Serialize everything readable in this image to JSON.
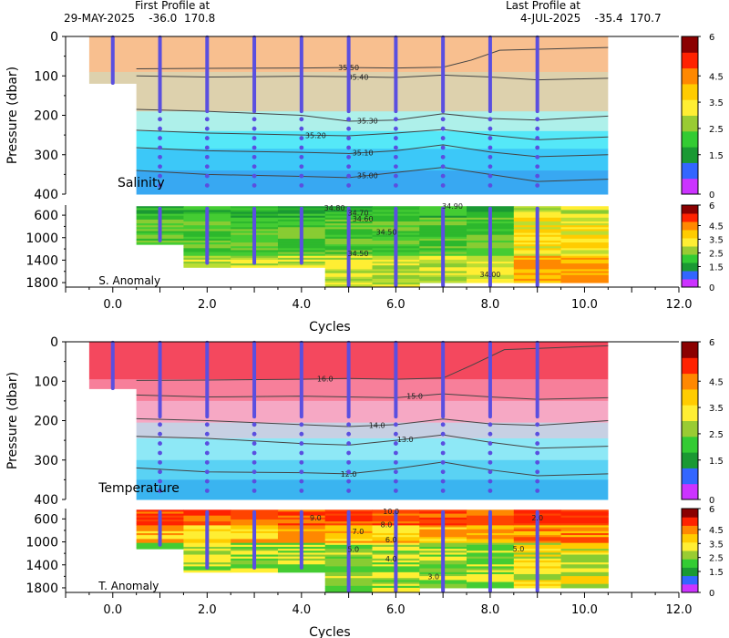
{
  "header": {
    "first_label": "First Profile at",
    "first_value": "29-MAY-2025    -36.0  170.8",
    "last_label": "Last Profile at",
    "last_value": "4-JUL-2025    -35.4  170.7"
  },
  "colorbar_ticks": [
    "0",
    "1.5",
    "2.5",
    "3.5",
    "4.5",
    "6"
  ],
  "colors": {
    "profile_line": "#5a4fe0",
    "colorbar": [
      "#cc33ff",
      "#3366ff",
      "#1a9933",
      "#33cc33",
      "#99cc33",
      "#ffee33",
      "#ffcc00",
      "#ff8800",
      "#ff2200",
      "#8b0000"
    ]
  },
  "chart_data": [
    {
      "type": "heatmap",
      "panel": "salinity",
      "label": "Salinity",
      "ylabel": "Pressure (dbar)",
      "y_ticks": [
        0,
        100,
        200,
        300,
        400
      ],
      "ylim": [
        0,
        400
      ],
      "x_ticks": [
        "0.0",
        "2.0",
        "4.0",
        "6.0",
        "8.0",
        "10.0",
        "12.0"
      ],
      "xlim": [
        -1,
        12
      ],
      "bands": [
        {
          "from": 0,
          "to": 90,
          "color": "#f8bf8f"
        },
        {
          "from": 90,
          "to": 190,
          "color": "#ddd1ad"
        },
        {
          "from": 190,
          "to": 240,
          "color": "#aef0ea"
        },
        {
          "from": 240,
          "to": 285,
          "color": "#55e8f8"
        },
        {
          "from": 285,
          "to": 340,
          "color": "#3cc8f8"
        },
        {
          "from": 340,
          "to": 400,
          "color": "#38a8f2"
        }
      ],
      "contours": [
        {
          "label": "35.50",
          "label_x": 5.0,
          "x": [
            0.5,
            2,
            4,
            5,
            6,
            7,
            7.6,
            8.2,
            10.5
          ],
          "y": [
            82,
            81,
            80,
            79,
            80,
            78,
            60,
            35,
            28
          ]
        },
        {
          "label": "35.40",
          "label_x": 5.2,
          "x": [
            0.5,
            2,
            4,
            5,
            6,
            7,
            8,
            9,
            10.5
          ],
          "y": [
            100,
            103,
            101,
            102,
            104,
            98,
            103,
            110,
            106
          ]
        },
        {
          "label": "35.30",
          "label_x": 5.4,
          "x": [
            0.5,
            2,
            4,
            5,
            6,
            7,
            8,
            9,
            10.5
          ],
          "y": [
            185,
            190,
            200,
            215,
            212,
            196,
            208,
            212,
            202
          ]
        },
        {
          "label": "35.20",
          "label_x": 4.3,
          "x": [
            0.5,
            2,
            4,
            5,
            6,
            7,
            8,
            9,
            10.5
          ],
          "y": [
            238,
            245,
            250,
            252,
            245,
            236,
            250,
            262,
            255
          ]
        },
        {
          "label": "35.10",
          "label_x": 5.3,
          "x": [
            0.5,
            2,
            4,
            5,
            6,
            7,
            8,
            9,
            10.5
          ],
          "y": [
            282,
            290,
            294,
            297,
            290,
            275,
            293,
            305,
            300
          ]
        },
        {
          "label": "35.00",
          "label_x": 5.4,
          "x": [
            0.5,
            2,
            4,
            5,
            6,
            7,
            8,
            9,
            10.5
          ],
          "y": [
            340,
            350,
            355,
            358,
            345,
            332,
            350,
            368,
            362
          ]
        }
      ]
    },
    {
      "type": "heatmap",
      "panel": "salinity_anomaly",
      "label": "S. Anomaly",
      "y_ticks": [
        600,
        1000,
        1400,
        1800
      ],
      "ylim": [
        420,
        1880
      ],
      "x_ticks": [
        "0.0",
        "2.0",
        "4.0",
        "6.0",
        "8.0",
        "10.0",
        "12.0"
      ],
      "xlim": [
        -1,
        12
      ],
      "contour_labels": [
        {
          "text": "34.80",
          "x": 4.7,
          "y": 470
        },
        {
          "text": "34.70",
          "x": 5.2,
          "y": 560
        },
        {
          "text": "34.60",
          "x": 5.3,
          "y": 660
        },
        {
          "text": "34.90",
          "x": 7.2,
          "y": 440
        },
        {
          "text": "34.50",
          "x": 5.8,
          "y": 900
        },
        {
          "text": "34.50",
          "x": 5.2,
          "y": 1280
        },
        {
          "text": "34.00",
          "x": 8.0,
          "y": 1650
        }
      ]
    },
    {
      "type": "heatmap",
      "panel": "temperature",
      "label": "Temperature",
      "ylabel": "Pressure (dbar)",
      "y_ticks": [
        0,
        100,
        200,
        300,
        400
      ],
      "ylim": [
        0,
        400
      ],
      "x_ticks": [
        "0.0",
        "2.0",
        "4.0",
        "6.0",
        "8.0",
        "10.0",
        "12.0"
      ],
      "xlim": [
        -1,
        12
      ],
      "bands": [
        {
          "from": 0,
          "to": 95,
          "color": "#f4485e"
        },
        {
          "from": 95,
          "to": 150,
          "color": "#f77f9a"
        },
        {
          "from": 150,
          "to": 205,
          "color": "#f6a8c4"
        },
        {
          "from": 205,
          "to": 245,
          "color": "#c7d0e3"
        },
        {
          "from": 245,
          "to": 300,
          "color": "#8ee8f6"
        },
        {
          "from": 300,
          "to": 350,
          "color": "#5ad2f4"
        },
        {
          "from": 350,
          "to": 400,
          "color": "#3ab4f0"
        }
      ],
      "contours": [
        {
          "label": "16.0",
          "label_x": 4.5,
          "x": [
            0.5,
            2,
            4,
            5,
            6,
            7,
            7.6,
            8.3,
            10.5
          ],
          "y": [
            98,
            97,
            95,
            93,
            95,
            92,
            60,
            20,
            10
          ]
        },
        {
          "label": "15.0",
          "label_x": 6.4,
          "x": [
            0.5,
            2,
            4,
            5,
            6,
            7,
            8,
            9,
            10.5
          ],
          "y": [
            135,
            140,
            138,
            140,
            142,
            132,
            140,
            146,
            142
          ]
        },
        {
          "label": "14.0",
          "label_x": 5.6,
          "x": [
            0.5,
            2,
            4,
            5,
            6,
            7,
            8,
            9,
            10.5
          ],
          "y": [
            195,
            200,
            210,
            215,
            210,
            196,
            208,
            212,
            200
          ]
        },
        {
          "label": "13.0",
          "label_x": 6.2,
          "x": [
            0.5,
            2,
            4,
            5,
            6,
            7,
            8,
            9,
            10.5
          ],
          "y": [
            240,
            245,
            258,
            262,
            250,
            236,
            255,
            270,
            265
          ]
        },
        {
          "label": "12.0",
          "label_x": 5.0,
          "x": [
            0.5,
            2,
            4,
            5,
            6,
            7,
            8,
            9,
            10.5
          ],
          "y": [
            320,
            330,
            332,
            335,
            322,
            305,
            325,
            340,
            335
          ]
        }
      ]
    },
    {
      "type": "heatmap",
      "panel": "temperature_anomaly",
      "label": "T. Anomaly",
      "xlabel": "Cycles",
      "y_ticks": [
        600,
        1000,
        1400,
        1800
      ],
      "ylim": [
        420,
        1880
      ],
      "x_ticks": [
        "0.0",
        "2.0",
        "4.0",
        "6.0",
        "8.0",
        "10.0",
        "12.0"
      ],
      "xlim": [
        -1,
        12
      ],
      "contour_labels": [
        {
          "text": "10.0",
          "x": 5.9,
          "y": 470
        },
        {
          "text": "9.0",
          "x": 4.3,
          "y": 580
        },
        {
          "text": "8.0",
          "x": 5.8,
          "y": 700
        },
        {
          "text": "7.0",
          "x": 5.2,
          "y": 820
        },
        {
          "text": "6.0",
          "x": 5.9,
          "y": 960
        },
        {
          "text": "5.0",
          "x": 5.1,
          "y": 1130
        },
        {
          "text": "4.0",
          "x": 5.9,
          "y": 1290
        },
        {
          "text": "3.0",
          "x": 6.8,
          "y": 1600
        },
        {
          "text": "2.0",
          "x": 9.0,
          "y": 580
        },
        {
          "text": "5.0",
          "x": 8.6,
          "y": 1120
        }
      ]
    }
  ]
}
